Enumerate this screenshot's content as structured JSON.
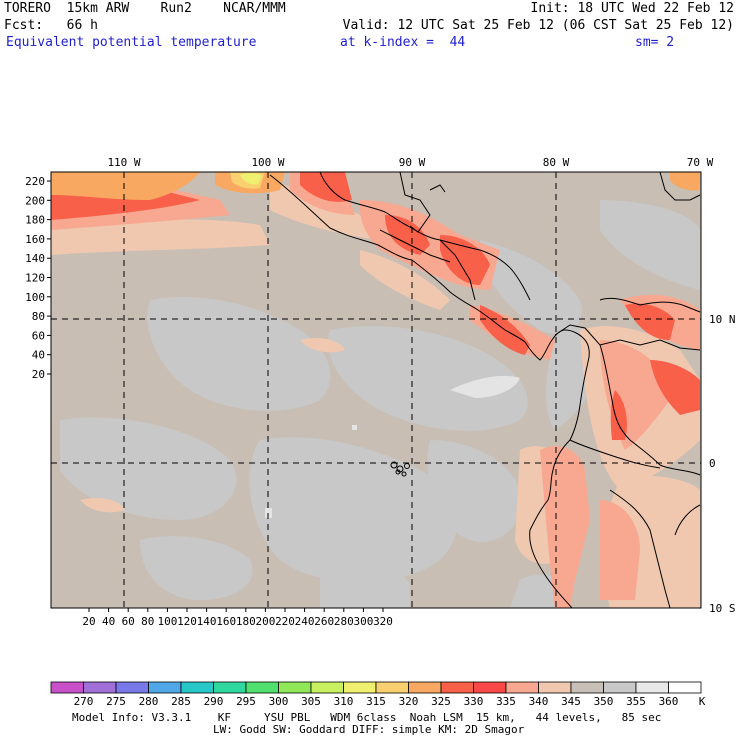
{
  "header": {
    "line1_left": "TORERO  15km ARW    Run2    NCAR/MMM",
    "line1_right": "Init: 18 UTC Wed 22 Feb 12",
    "line2_left": "Fcst:   66 h",
    "line2_right": "Valid: 12 UTC Sat 25 Feb 12 (06 CST Sat 25 Feb 12)",
    "field_name": "Equivalent potential temperature",
    "level": "at k-index =  44",
    "smoothing": "sm= 2"
  },
  "map": {
    "lon_labels": [
      "110 W",
      "100 W",
      "90 W",
      "80 W",
      "70 W"
    ],
    "lat_labels": [
      "10 N",
      "0",
      "10 S"
    ],
    "y_ticks": [
      "220",
      "200",
      "180",
      "160",
      "140",
      "120",
      "100",
      "80",
      "60",
      "40",
      "20"
    ],
    "x_ticks": [
      "20",
      "40",
      "60",
      "80",
      "100",
      "120",
      "140",
      "160",
      "180",
      "200",
      "220",
      "240",
      "260",
      "280",
      "300",
      "320"
    ]
  },
  "colorbar": {
    "labels": [
      "270",
      "275",
      "280",
      "285",
      "290",
      "295",
      "300",
      "305",
      "310",
      "315",
      "320",
      "325",
      "330",
      "335",
      "340",
      "345",
      "350",
      "355",
      "360"
    ],
    "unit": "K",
    "colors": [
      "#c850c8",
      "#a070d8",
      "#7878e8",
      "#50a8e8",
      "#28c8c8",
      "#30d8a0",
      "#50e070",
      "#90e858",
      "#c8f060",
      "#f0f070",
      "#f8d070",
      "#f8a860",
      "#f86048",
      "#f84848",
      "#f8a890",
      "#f0c8b0",
      "#c8c0b8",
      "#c8c8c8",
      "#e8e8e8",
      "#ffffff"
    ]
  },
  "footer": {
    "line1": "Model Info: V3.3.1    KF     YSU PBL   WDM 6class  Noah LSM  15 km,   44 levels,   85 sec",
    "line2": "LW: Godd SW: Goddard DIFF: simple KM: 2D Smagor"
  }
}
